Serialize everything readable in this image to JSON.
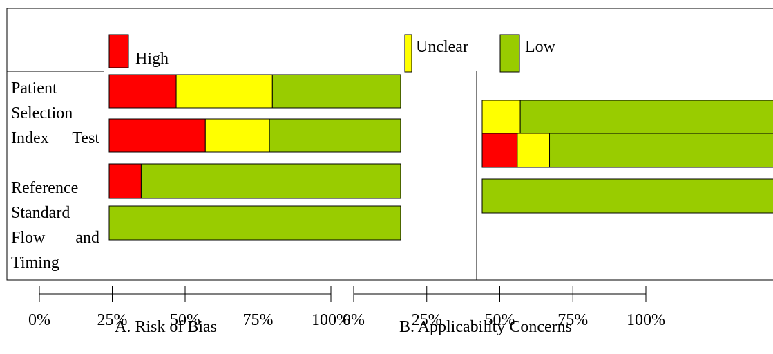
{
  "chart_data": [
    {
      "type": "stacked-bar",
      "title": "A. Risk of Bias",
      "categories": [
        "Patient Selection",
        "Index Test",
        "Reference Standard",
        "Flow and Timing"
      ],
      "series": [
        {
          "name": "High",
          "color": "#ff0000",
          "values": [
            23,
            33,
            11,
            0
          ]
        },
        {
          "name": "Unclear",
          "color": "#ffff00",
          "values": [
            33,
            22,
            0,
            0
          ]
        },
        {
          "name": "Low",
          "color": "#99cc00",
          "values": [
            44,
            45,
            89,
            100
          ]
        }
      ],
      "xlim": [
        0,
        100
      ],
      "xticks": [
        {
          "value": 0,
          "label": "0%"
        },
        {
          "value": 25,
          "label": "25%"
        },
        {
          "value": 50,
          "label": "50%"
        },
        {
          "value": 75,
          "label": "75%"
        },
        {
          "value": 100,
          "label": "100%"
        }
      ]
    },
    {
      "type": "stacked-bar",
      "title": "B. Applicability Concerns",
      "series": [
        {
          "color": "#ff0000",
          "values": [
            0,
            12,
            0
          ]
        },
        {
          "color": "#ffff00",
          "values": [
            13,
            11,
            0
          ]
        },
        {
          "color": "#99cc00",
          "values": [
            87,
            77,
            100
          ]
        }
      ],
      "xlim": [
        0,
        100
      ],
      "xticks": [
        {
          "value": 0,
          "label": "0%"
        },
        {
          "value": 25,
          "label": "25%"
        },
        {
          "value": 50,
          "label": "50%"
        },
        {
          "value": 75,
          "label": "75%"
        },
        {
          "value": 100,
          "label": "100%"
        }
      ]
    }
  ]
}
